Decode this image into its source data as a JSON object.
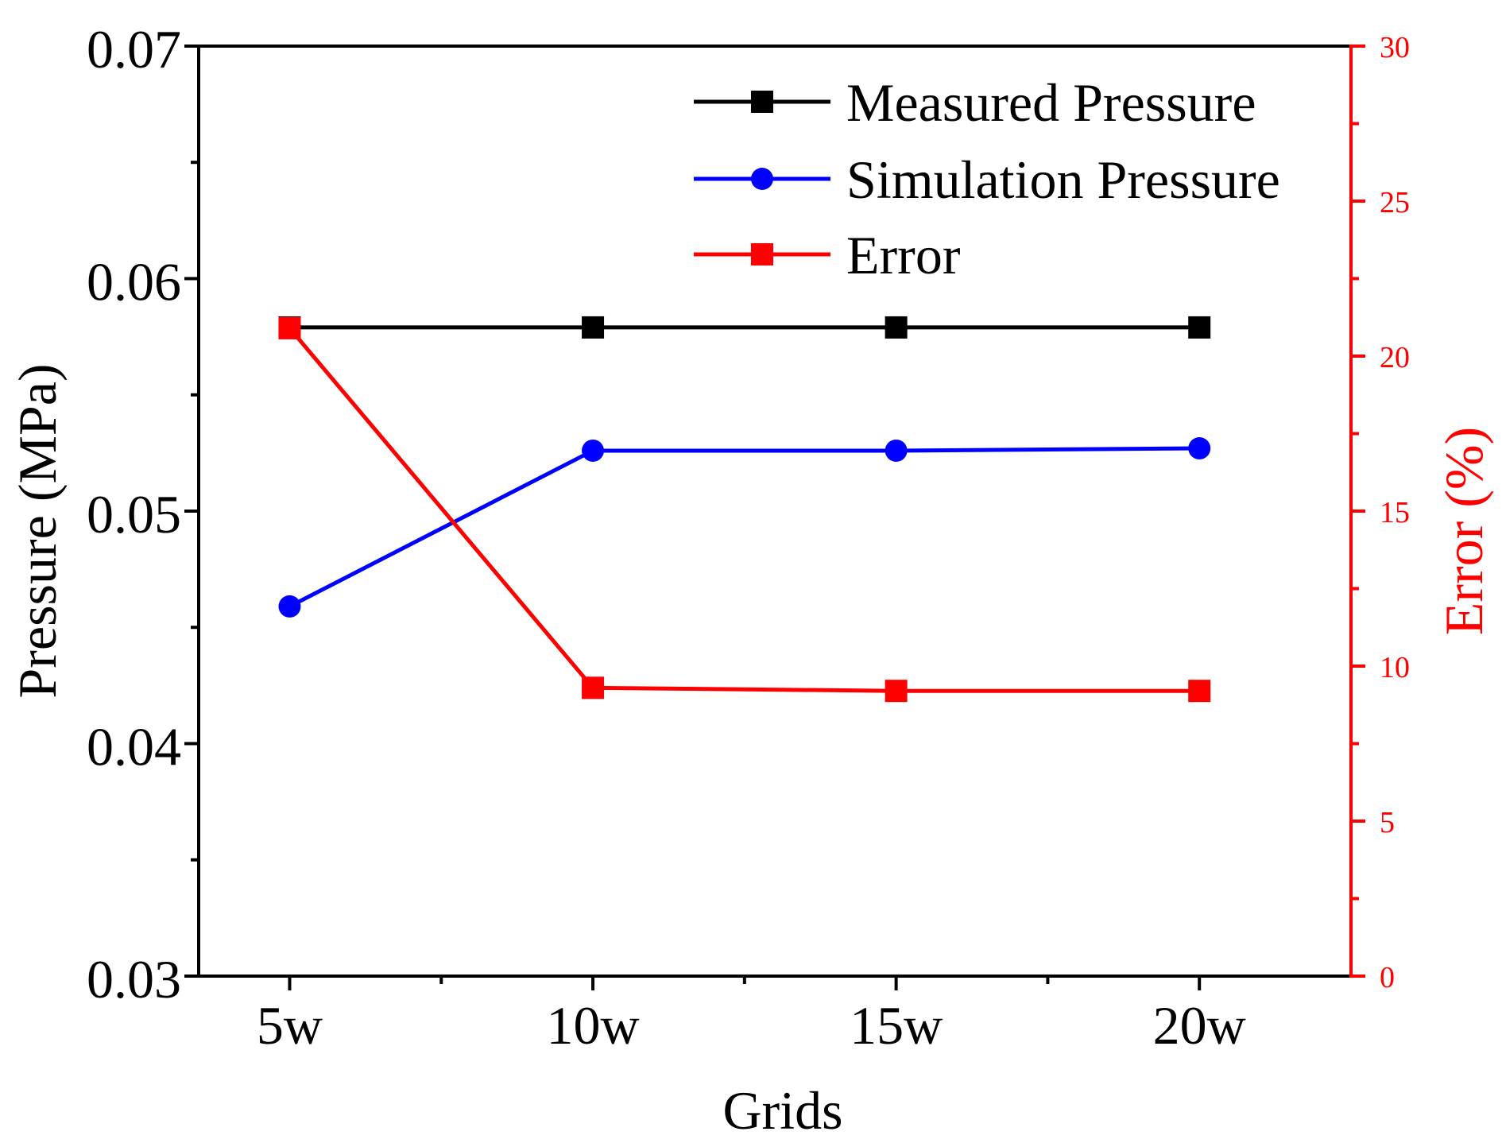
{
  "chart_data": {
    "type": "line",
    "xlabel": "Grids",
    "ylabel": "Pressure (MPa)",
    "y2label": "Error (%)",
    "categories": [
      "5w",
      "10w",
      "15w",
      "20w"
    ],
    "ylim": [
      0.03,
      0.07
    ],
    "y_ticks": [
      "0.03",
      "0.04",
      "0.05",
      "0.06",
      "0.07"
    ],
    "y2lim": [
      0,
      30
    ],
    "y2_ticks": [
      "0",
      "5",
      "10",
      "15",
      "20",
      "25",
      "30"
    ],
    "legend_position": "top-right",
    "series": [
      {
        "name": "Measured Pressure",
        "axis": "left",
        "marker": "square",
        "color": "#000000",
        "values": [
          0.0579,
          0.0579,
          0.0579,
          0.0579
        ]
      },
      {
        "name": "Simulation Pressure",
        "axis": "left",
        "marker": "circle",
        "color": "#0000ff",
        "values": [
          0.0459,
          0.0526,
          0.0526,
          0.0527
        ]
      },
      {
        "name": "Error",
        "axis": "right",
        "marker": "square",
        "color": "#ff0000",
        "values": [
          20.9,
          9.3,
          9.2,
          9.2
        ]
      }
    ]
  }
}
